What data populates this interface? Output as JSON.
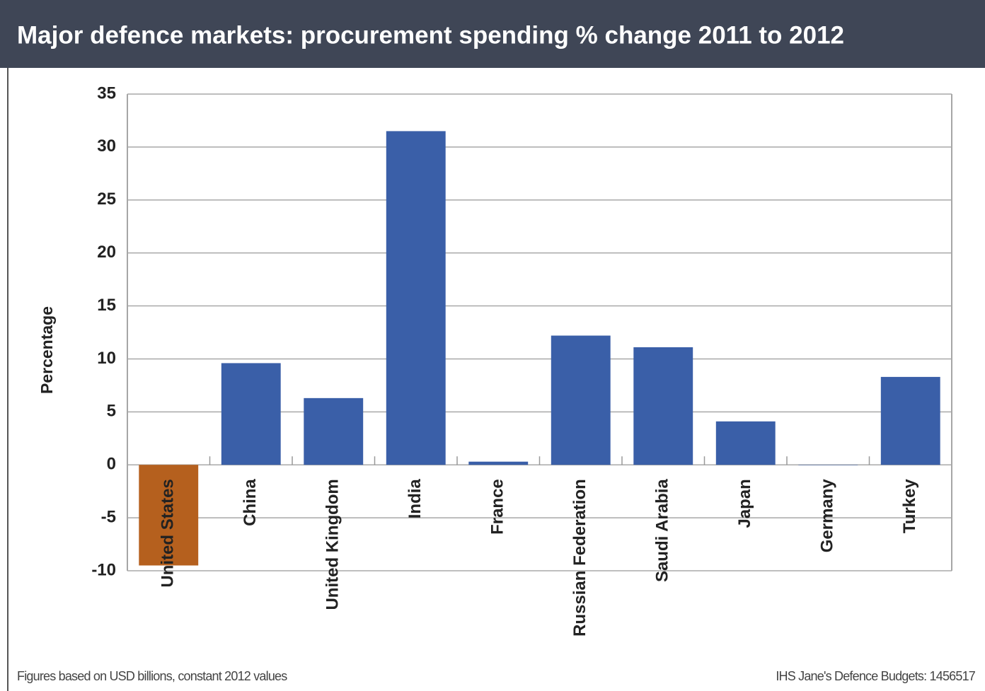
{
  "chart_data": {
    "type": "bar",
    "title": "Major defence markets: procurement spending % change 2011 to 2012",
    "y_label": "Percentage",
    "categories": [
      "United States",
      "China",
      "United Kingdom",
      "India",
      "France",
      "Russian Federation",
      "Saudi Arabia",
      "Japan",
      "Germany",
      "Turkey"
    ],
    "values": [
      -9.5,
      9.6,
      6.3,
      31.5,
      0.3,
      12.2,
      11.1,
      4.1,
      0,
      8.3
    ],
    "colors": [
      "#b5601e",
      "#3a5fa8",
      "#3a5fa8",
      "#3a5fa8",
      "#3a5fa8",
      "#3a5fa8",
      "#3a5fa8",
      "#3a5fa8",
      "#3a5fa8",
      "#3a5fa8"
    ],
    "ylim": [
      -10,
      35
    ],
    "yticks": [
      -10,
      -5,
      0,
      5,
      10,
      15,
      20,
      25,
      30,
      35
    ],
    "grid": true,
    "footnote": "Figures based on USD billions, constant 2012 values",
    "source": "IHS Jane's Defence Budgets: 1456517"
  }
}
